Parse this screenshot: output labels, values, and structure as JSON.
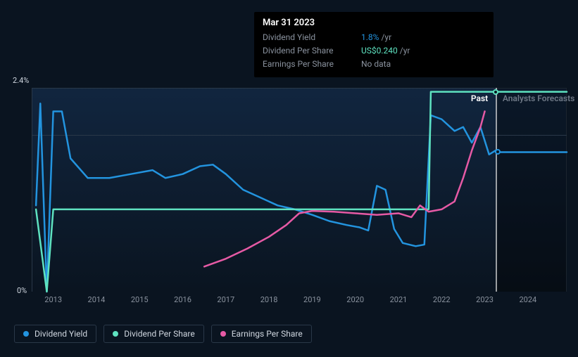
{
  "tooltip": {
    "date": "Mar 31 2023",
    "rows": [
      {
        "label": "Dividend Yield",
        "value": "1.8%",
        "unit": "/yr",
        "color": "#2394df"
      },
      {
        "label": "Dividend Per Share",
        "value": "US$0.240",
        "unit": "/yr",
        "color": "#5ee2c0"
      },
      {
        "label": "Earnings Per Share",
        "value": "No data",
        "unit": "",
        "color": "#8a929e"
      }
    ]
  },
  "chart": {
    "type": "line",
    "background_color": "#0a1420",
    "grid_color": "#2a3848",
    "y_axis": {
      "min": 0,
      "max": 2.6,
      "labels": [
        {
          "text": "2.4%",
          "value": 2.4
        },
        {
          "text": "0%",
          "value": 0
        }
      ]
    },
    "x_axis": {
      "min": 2012.5,
      "max": 2024.9,
      "ticks": [
        "2013",
        "2014",
        "2015",
        "2016",
        "2017",
        "2018",
        "2019",
        "2020",
        "2021",
        "2022",
        "2023",
        "2024"
      ],
      "divider_at": 2023.25,
      "forecast_start": 2023.25
    },
    "tabs": {
      "past": "Past",
      "forecast": "Analysts Forecasts",
      "past_color": "#ffffff",
      "forecast_color": "#6e7886"
    },
    "series": [
      {
        "name": "Dividend Yield",
        "color": "#2394df",
        "width": 2.5,
        "points": [
          [
            2012.6,
            1.1
          ],
          [
            2012.7,
            2.4
          ],
          [
            2012.85,
            0.0
          ],
          [
            2013.0,
            2.3
          ],
          [
            2013.2,
            2.3
          ],
          [
            2013.4,
            1.7
          ],
          [
            2013.8,
            1.45
          ],
          [
            2014.3,
            1.45
          ],
          [
            2014.8,
            1.5
          ],
          [
            2015.3,
            1.55
          ],
          [
            2015.6,
            1.45
          ],
          [
            2016.0,
            1.5
          ],
          [
            2016.4,
            1.6
          ],
          [
            2016.7,
            1.62
          ],
          [
            2017.0,
            1.5
          ],
          [
            2017.4,
            1.3
          ],
          [
            2017.8,
            1.2
          ],
          [
            2018.2,
            1.1
          ],
          [
            2018.6,
            1.05
          ],
          [
            2019.0,
            0.98
          ],
          [
            2019.4,
            0.9
          ],
          [
            2019.8,
            0.85
          ],
          [
            2020.1,
            0.82
          ],
          [
            2020.3,
            0.78
          ],
          [
            2020.5,
            1.35
          ],
          [
            2020.7,
            1.3
          ],
          [
            2020.9,
            0.8
          ],
          [
            2021.1,
            0.62
          ],
          [
            2021.4,
            0.58
          ],
          [
            2021.6,
            0.6
          ],
          [
            2021.75,
            2.25
          ],
          [
            2022.0,
            2.2
          ],
          [
            2022.3,
            2.05
          ],
          [
            2022.5,
            2.1
          ],
          [
            2022.7,
            1.9
          ],
          [
            2022.9,
            2.1
          ],
          [
            2023.1,
            1.75
          ],
          [
            2023.25,
            1.8
          ],
          [
            2023.3,
            1.78
          ],
          [
            2024.9,
            1.78
          ]
        ],
        "marker_at": [
          2023.3,
          1.78
        ]
      },
      {
        "name": "Dividend Per Share",
        "color": "#5ee2c0",
        "width": 2.5,
        "points": [
          [
            2012.6,
            1.05
          ],
          [
            2012.85,
            0.0
          ],
          [
            2013.0,
            1.05
          ],
          [
            2021.7,
            1.05
          ],
          [
            2021.75,
            2.55
          ],
          [
            2024.9,
            2.55
          ]
        ],
        "marker_at": [
          2023.25,
          2.55
        ]
      },
      {
        "name": "Earnings Per Share",
        "color": "#e65aa5",
        "width": 2.5,
        "points": [
          [
            2016.5,
            0.32
          ],
          [
            2017.0,
            0.42
          ],
          [
            2017.5,
            0.55
          ],
          [
            2018.0,
            0.7
          ],
          [
            2018.4,
            0.85
          ],
          [
            2018.7,
            1.0
          ],
          [
            2019.0,
            1.03
          ],
          [
            2019.5,
            1.02
          ],
          [
            2020.0,
            1.0
          ],
          [
            2020.5,
            0.98
          ],
          [
            2021.0,
            1.0
          ],
          [
            2021.3,
            0.95
          ],
          [
            2021.5,
            1.1
          ],
          [
            2021.7,
            1.02
          ],
          [
            2022.0,
            1.05
          ],
          [
            2022.3,
            1.15
          ],
          [
            2022.5,
            1.45
          ],
          [
            2022.7,
            1.8
          ],
          [
            2022.9,
            2.1
          ],
          [
            2023.0,
            2.3
          ]
        ]
      }
    ]
  },
  "legend": [
    {
      "label": "Dividend Yield",
      "color": "#2394df"
    },
    {
      "label": "Dividend Per Share",
      "color": "#5ee2c0"
    },
    {
      "label": "Earnings Per Share",
      "color": "#e65aa5"
    }
  ]
}
